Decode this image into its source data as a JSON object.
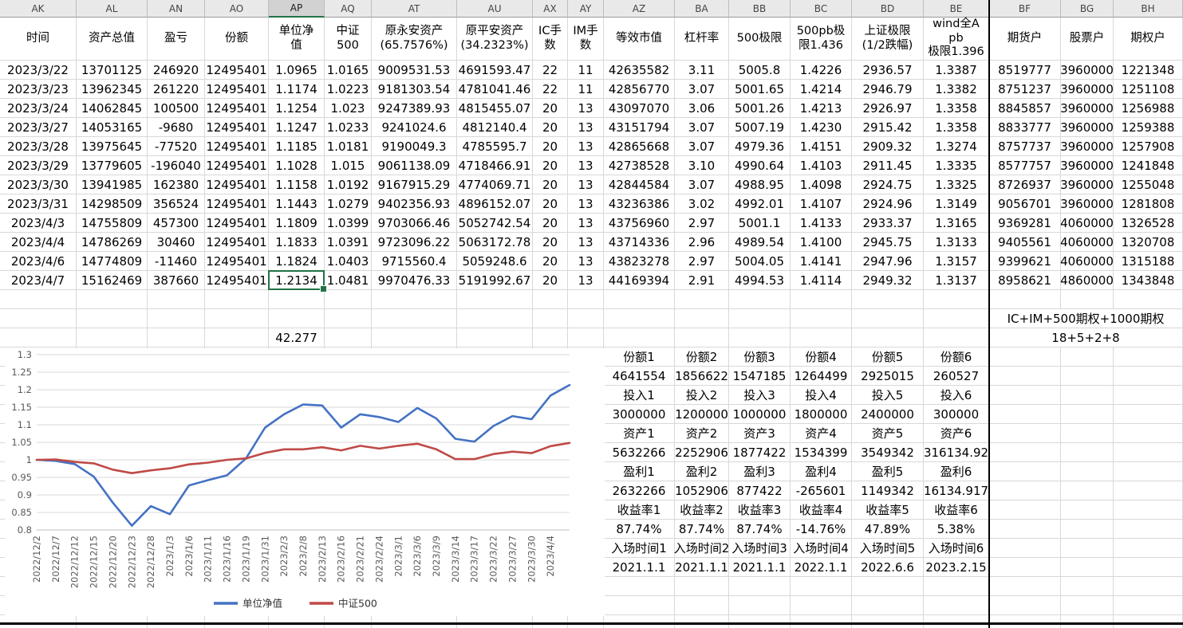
{
  "sheet": {
    "column_letters": [
      "AK",
      "AL",
      "AN",
      "AO",
      "AP",
      "AQ",
      "AT",
      "AU",
      "AX",
      "AY",
      "AZ",
      "BA",
      "BB",
      "BC",
      "BD",
      "BE",
      "BF",
      "BG",
      "BH"
    ],
    "selected_column": "AP",
    "header": [
      "时间",
      "资产总值",
      "盈亏",
      "份额",
      "单位净\n值",
      "中证\n500",
      "原永安资产\n(65.7576%)",
      "原平安资产\n(34.2323%)",
      "IC手\n数",
      "IM手\n数",
      "等效市值",
      "杠杆率",
      "500极限",
      "500pb极\n限1.436",
      "上证极限\n(1/2跌幅)",
      "wind全A pb\n极限1.396",
      "期货户",
      "股票户",
      "期权户"
    ],
    "rows": [
      [
        "2023/3/22",
        "13701125",
        "246920",
        "12495401",
        "1.0965",
        "1.0165",
        "9009531.53",
        "4691593.47",
        "22",
        "11",
        "42635582",
        "3.11",
        "5005.8",
        "1.4226",
        "2936.57",
        "1.3387",
        "8519777",
        "3960000",
        "1221348"
      ],
      [
        "2023/3/23",
        "13962345",
        "261220",
        "12495401",
        "1.1174",
        "1.0223",
        "9181303.54",
        "4781041.46",
        "22",
        "11",
        "42856770",
        "3.07",
        "5001.65",
        "1.4214",
        "2946.79",
        "1.3382",
        "8751237",
        "3960000",
        "1251108"
      ],
      [
        "2023/3/24",
        "14062845",
        "100500",
        "12495401",
        "1.1254",
        "1.023",
        "9247389.93",
        "4815455.07",
        "20",
        "13",
        "43097070",
        "3.06",
        "5001.26",
        "1.4213",
        "2926.97",
        "1.3358",
        "8845857",
        "3960000",
        "1256988"
      ],
      [
        "2023/3/27",
        "14053165",
        "-9680",
        "12495401",
        "1.1247",
        "1.0233",
        "9241024.6",
        "4812140.4",
        "20",
        "13",
        "43151794",
        "3.07",
        "5007.19",
        "1.4230",
        "2915.42",
        "1.3358",
        "8833777",
        "3960000",
        "1259388"
      ],
      [
        "2023/3/28",
        "13975645",
        "-77520",
        "12495401",
        "1.1185",
        "1.0181",
        "9190049.3",
        "4785595.7",
        "20",
        "13",
        "42865668",
        "3.07",
        "4979.36",
        "1.4151",
        "2909.32",
        "1.3274",
        "8757737",
        "3960000",
        "1257908"
      ],
      [
        "2023/3/29",
        "13779605",
        "-196040",
        "12495401",
        "1.1028",
        "1.015",
        "9061138.09",
        "4718466.91",
        "20",
        "13",
        "42738528",
        "3.10",
        "4990.64",
        "1.4103",
        "2911.45",
        "1.3335",
        "8577757",
        "3960000",
        "1241848"
      ],
      [
        "2023/3/30",
        "13941985",
        "162380",
        "12495401",
        "1.1158",
        "1.0192",
        "9167915.29",
        "4774069.71",
        "20",
        "13",
        "42844584",
        "3.07",
        "4988.95",
        "1.4098",
        "2924.75",
        "1.3325",
        "8726937",
        "3960000",
        "1255048"
      ],
      [
        "2023/3/31",
        "14298509",
        "356524",
        "12495401",
        "1.1443",
        "1.0279",
        "9402356.93",
        "4896152.07",
        "20",
        "13",
        "43236386",
        "3.02",
        "4992.01",
        "1.4107",
        "2924.96",
        "1.3149",
        "9056701",
        "3960000",
        "1281808"
      ],
      [
        "2023/4/3",
        "14755809",
        "457300",
        "12495401",
        "1.1809",
        "1.0399",
        "9703066.46",
        "5052742.54",
        "20",
        "13",
        "43756960",
        "2.97",
        "5001.1",
        "1.4133",
        "2933.37",
        "1.3165",
        "9369281",
        "4060000",
        "1326528"
      ],
      [
        "2023/4/4",
        "14786269",
        "30460",
        "12495401",
        "1.1833",
        "1.0391",
        "9723096.22",
        "5063172.78",
        "20",
        "13",
        "43714336",
        "2.96",
        "4989.54",
        "1.4100",
        "2945.75",
        "1.3133",
        "9405561",
        "4060000",
        "1320708"
      ],
      [
        "2023/4/6",
        "14774809",
        "-11460",
        "12495401",
        "1.1824",
        "1.0403",
        "9715560.4",
        "5059248.6",
        "20",
        "13",
        "43823278",
        "2.97",
        "5004.05",
        "1.4141",
        "2947.96",
        "1.3157",
        "9399621",
        "4060000",
        "1315188"
      ],
      [
        "2023/4/7",
        "15162469",
        "387660",
        "12495401",
        "1.2134",
        "1.0481",
        "9970476.33",
        "5191992.67",
        "20",
        "13",
        "44169394",
        "2.91",
        "4994.53",
        "1.4114",
        "2949.32",
        "1.3137",
        "8958621",
        "4860000",
        "1343848"
      ]
    ],
    "ap_note_value": "42.277",
    "side_note_line1": "IC+IM+500期权+1000期权",
    "side_note_line2": "18+5+2+8"
  },
  "positions_table": {
    "rows": [
      [
        "份额1",
        "份额2",
        "份额3",
        "份额4",
        "份额5",
        "份额6"
      ],
      [
        "4641554",
        "1856622",
        "1547185",
        "1264499",
        "2925015",
        "260527"
      ],
      [
        "投入1",
        "投入2",
        "投入3",
        "投入4",
        "投入5",
        "投入6"
      ],
      [
        "3000000",
        "1200000",
        "1000000",
        "1800000",
        "2400000",
        "300000"
      ],
      [
        "资产1",
        "资产2",
        "资产3",
        "资产4",
        "资产5",
        "资产6"
      ],
      [
        "5632266",
        "2252906",
        "1877422",
        "1534399",
        "3549342",
        "316134.92"
      ],
      [
        "盈利1",
        "盈利2",
        "盈利3",
        "盈利4",
        "盈利5",
        "盈利6"
      ],
      [
        "2632266",
        "1052906",
        "877422",
        "-265601",
        "1149342",
        "16134.917"
      ],
      [
        "收益率1",
        "收益率2",
        "收益率3",
        "收益率4",
        "收益率5",
        "收益率6"
      ],
      [
        "87.74%",
        "87.74%",
        "87.74%",
        "-14.76%",
        "47.89%",
        "5.38%"
      ],
      [
        "入场时间1",
        "入场时间2",
        "入场时间3",
        "入场时间4",
        "入场时间5",
        "入场时间6"
      ],
      [
        "2021.1.1",
        "2021.1.1",
        "2021.1.1",
        "2022.1.1",
        "2022.6.6",
        "2023.2.15"
      ]
    ]
  },
  "chart_data": {
    "type": "line",
    "x": [
      "2022/12/2",
      "2022/12/7",
      "2022/12/12",
      "2022/12/15",
      "2022/12/20",
      "2022/12/23",
      "2022/12/28",
      "2023/1/3",
      "2023/1/6",
      "2023/1/11",
      "2023/1/16",
      "2023/1/19",
      "2023/1/31",
      "2023/2/3",
      "2023/2/8",
      "2023/2/13",
      "2023/2/16",
      "2023/2/21",
      "2023/2/24",
      "2023/3/1",
      "2023/3/6",
      "2023/3/9",
      "2023/3/14",
      "2023/3/17",
      "2023/3/22",
      "2023/3/27",
      "2023/3/30",
      "2023/4/4",
      ""
    ],
    "series": [
      {
        "name": "单位净值",
        "color": "#4472c4",
        "values": [
          1.0,
          0.997,
          0.988,
          0.952,
          0.878,
          0.812,
          0.868,
          0.845,
          0.927,
          0.942,
          0.956,
          1.004,
          1.092,
          1.13,
          1.158,
          1.155,
          1.092,
          1.13,
          1.122,
          1.108,
          1.148,
          1.118,
          1.06,
          1.052,
          1.0965,
          1.1247,
          1.1158,
          1.1833,
          1.2134
        ]
      },
      {
        "name": "中证500",
        "color": "#bf4a47",
        "values": [
          1.0,
          1.001,
          0.994,
          0.99,
          0.972,
          0.962,
          0.97,
          0.976,
          0.987,
          0.992,
          1.0,
          1.004,
          1.02,
          1.03,
          1.03,
          1.036,
          1.027,
          1.04,
          1.032,
          1.04,
          1.046,
          1.03,
          1.002,
          1.002,
          1.0165,
          1.0233,
          1.0192,
          1.0391,
          1.0481
        ]
      }
    ],
    "title": "",
    "xlabel": "",
    "ylabel": "",
    "ylim": [
      0.8,
      1.3
    ],
    "yticks": [
      "0.8",
      "0.85",
      "0.9",
      "0.95",
      "1",
      "1.05",
      "1.1",
      "1.15",
      "1.2",
      "1.25",
      "1.3"
    ],
    "grid": true,
    "legend_position": "bottom"
  }
}
